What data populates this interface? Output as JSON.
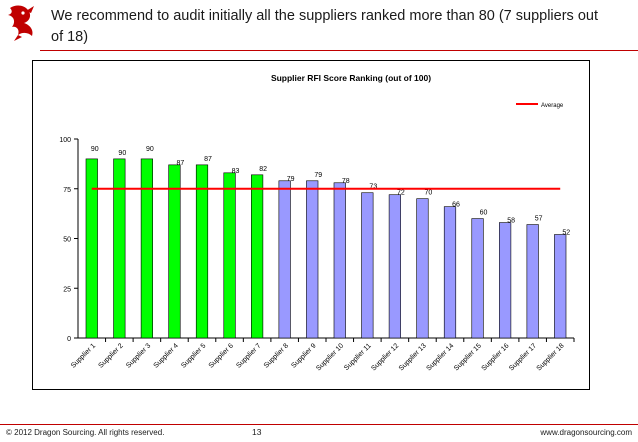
{
  "header": {
    "headline": "We recommend to audit initially all the suppliers ranked more than 80 (7 suppliers out of 18)"
  },
  "footer": {
    "copyright": "© 2012 Dragon Sourcing. All rights reserved.",
    "page_number": "13",
    "website": "www.dragonsourcing.com"
  },
  "colors": {
    "accent_red": "#c00000",
    "bar_green": "#00ff00",
    "bar_lavender": "#9999ff",
    "average_line": "#ff0000"
  },
  "chart_data": {
    "type": "bar",
    "title": "Supplier RFI Score Ranking (out of 100)",
    "xlabel": "",
    "ylabel": "",
    "ylim": [
      0,
      100
    ],
    "yticks": [
      0,
      25,
      50,
      75,
      100
    ],
    "grid": false,
    "legend_position": "top-right",
    "categories": [
      "Supplier 1",
      "Supplier 2",
      "Supplier 3",
      "Supplier 4",
      "Supplier 5",
      "Supplier 6",
      "Supplier 7",
      "Supplier 8",
      "Supplier 9",
      "Supplier 10",
      "Supplier 11",
      "Supplier 12",
      "Supplier 13",
      "Supplier 14",
      "Supplier 15",
      "Supplier 16",
      "Supplier 17",
      "Supplier 18"
    ],
    "values": [
      90,
      90,
      90,
      87,
      87,
      83,
      82,
      79,
      79,
      78,
      73,
      72,
      70,
      66,
      60,
      58,
      57,
      52
    ],
    "highlight_count": 7,
    "average": {
      "name": "Average",
      "value": 75
    }
  }
}
